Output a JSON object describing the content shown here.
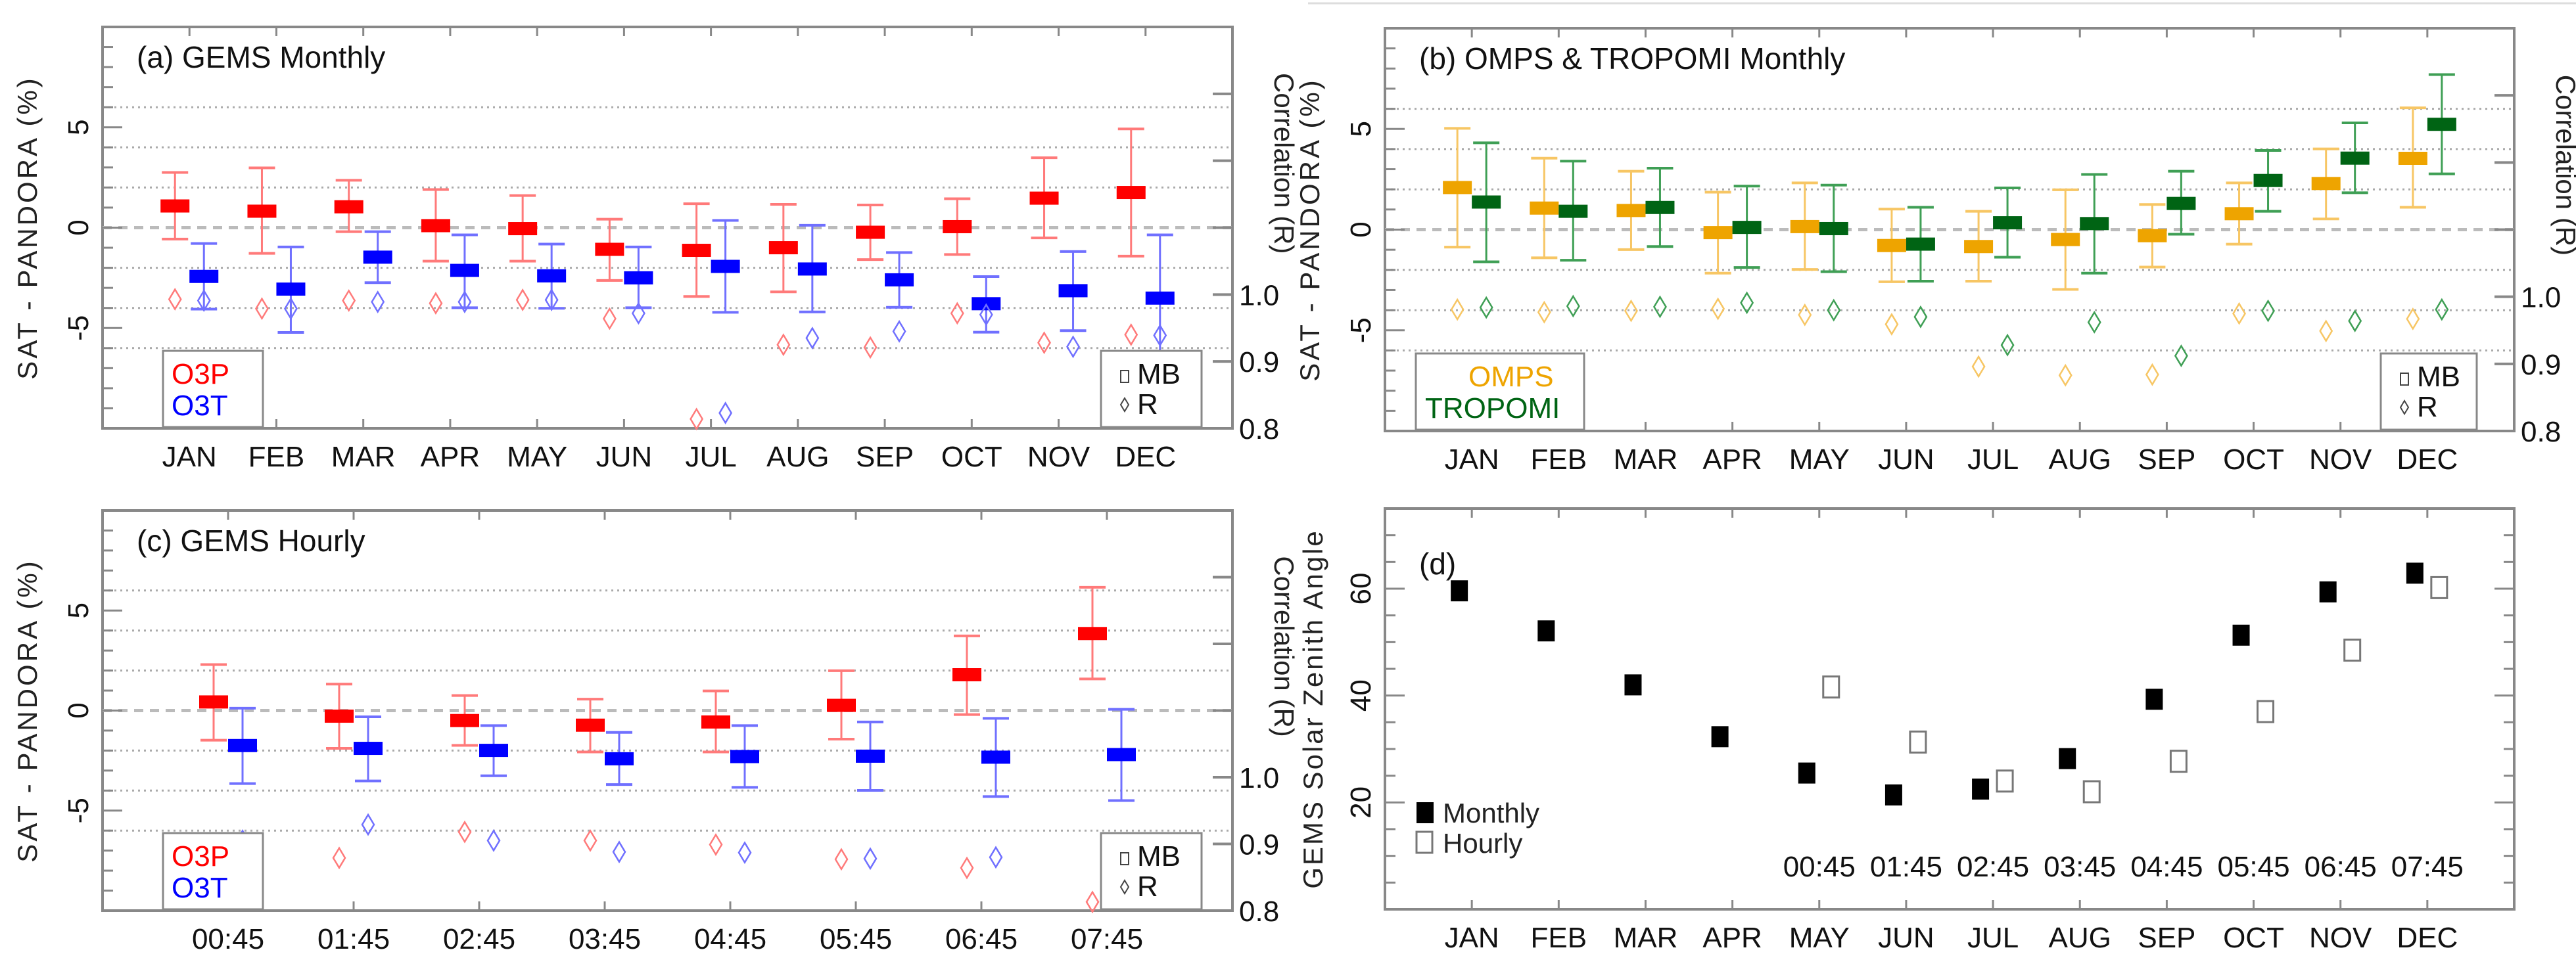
{
  "chart_data": [
    {
      "type": "scatter",
      "title": "(a) GEMS Monthly",
      "ylabel": "SAT - PANDORA (%)",
      "y2label": "Correlation (R)",
      "ylim": [
        -10,
        10
      ],
      "y2lim": [
        0.8,
        1.4
      ],
      "yticklabels": [
        "-5",
        "0",
        "5"
      ],
      "y2ticklabels": [
        "0.8",
        "0.9",
        "1.0"
      ],
      "categories": [
        "JAN",
        "FEB",
        "MAR",
        "APR",
        "MAY",
        "JUN",
        "JUL",
        "AUG",
        "SEP",
        "OCT",
        "NOV",
        "DEC"
      ],
      "legend_series": [
        "O3P",
        "O3T"
      ],
      "legend_markers": [
        "MB",
        "R"
      ],
      "series": [
        {
          "name": "O3P",
          "color": "#ff0000",
          "light": "#ff7a7a",
          "mb": [
            1.08,
            0.82,
            1.04,
            0.1,
            -0.05,
            -1.08,
            -1.13,
            -1.0,
            -0.23,
            0.05,
            1.47,
            1.75
          ],
          "err_hi": [
            2.75,
            2.98,
            2.36,
            1.9,
            1.6,
            0.42,
            1.19,
            1.16,
            1.13,
            1.44,
            3.48,
            4.92
          ],
          "err_lo": [
            -0.57,
            -1.28,
            -0.2,
            -1.67,
            -1.67,
            -2.63,
            -3.43,
            -3.2,
            -1.59,
            -1.34,
            -0.51,
            -1.42
          ],
          "r": [
            0.993,
            0.979,
            0.991,
            0.987,
            0.992,
            0.964,
            0.814,
            0.925,
            0.921,
            0.972,
            0.928,
            0.94
          ]
        },
        {
          "name": "O3T",
          "color": "#0000ff",
          "light": "#7070ff",
          "mb": [
            -2.43,
            -3.06,
            -1.47,
            -2.13,
            -2.4,
            -2.5,
            -1.93,
            -2.06,
            -2.6,
            -3.79,
            -3.14,
            -3.51
          ],
          "err_hi": [
            -0.79,
            -0.96,
            -0.2,
            -0.36,
            -0.82,
            -0.96,
            0.36,
            0.12,
            -1.24,
            -2.44,
            -1.19,
            -0.36
          ],
          "err_lo": [
            -4.06,
            -5.22,
            -2.74,
            -3.99,
            -4.02,
            -3.99,
            -4.22,
            -4.2,
            -3.97,
            -5.21,
            -5.13,
            -6.6
          ],
          "r": [
            0.991,
            0.979,
            0.989,
            0.989,
            0.992,
            0.972,
            0.823,
            0.935,
            0.945,
            0.97,
            0.922,
            0.939
          ]
        }
      ]
    },
    {
      "type": "scatter",
      "title": "(b) OMPS & TROPOMI Monthly",
      "ylabel": "SAT - PANDORA (%)",
      "y2label": "Correlation (R)",
      "ylim": [
        -10,
        10
      ],
      "y2lim": [
        0.8,
        1.4
      ],
      "yticklabels": [
        "-5",
        "0",
        "5"
      ],
      "y2ticklabels": [
        "0.8",
        "0.9",
        "1.0"
      ],
      "categories": [
        "JAN",
        "FEB",
        "MAR",
        "APR",
        "MAY",
        "JUN",
        "JUL",
        "AUG",
        "SEP",
        "OCT",
        "NOV",
        "DEC"
      ],
      "legend_series": [
        "OMPS",
        "TROPOMI"
      ],
      "legend_markers": [
        "MB",
        "R"
      ],
      "series": [
        {
          "name": "OMPS",
          "color": "#eea400",
          "light": "#f7c664",
          "mb": [
            2.09,
            1.07,
            0.95,
            -0.15,
            0.15,
            -0.79,
            -0.84,
            -0.49,
            -0.3,
            0.79,
            2.29,
            3.54
          ],
          "err_hi": [
            5.03,
            3.55,
            2.9,
            1.86,
            2.32,
            1.02,
            0.91,
            1.98,
            1.25,
            2.32,
            4.01,
            6.05
          ],
          "err_lo": [
            -0.87,
            -1.4,
            -0.99,
            -2.16,
            -1.98,
            -2.59,
            -2.56,
            -2.97,
            -1.86,
            -0.72,
            0.53,
            1.11
          ],
          "r": [
            0.981,
            0.977,
            0.979,
            0.982,
            0.973,
            0.959,
            0.896,
            0.883,
            0.884,
            0.975,
            0.949,
            0.967
          ]
        },
        {
          "name": "TROPOMI",
          "color": "#006414",
          "light": "#3f9f55",
          "mb": [
            1.37,
            0.91,
            1.1,
            0.11,
            0.05,
            -0.72,
            0.34,
            0.3,
            1.3,
            2.44,
            3.55,
            5.23
          ],
          "err_hi": [
            4.31,
            3.4,
            3.05,
            2.16,
            2.21,
            1.11,
            2.07,
            2.74,
            2.9,
            3.93,
            5.3,
            7.7
          ],
          "err_lo": [
            -1.6,
            -1.52,
            -0.84,
            -1.88,
            -2.09,
            -2.56,
            -1.37,
            -2.16,
            -0.23,
            0.91,
            1.83,
            2.77
          ],
          "r": [
            0.984,
            0.986,
            0.985,
            0.991,
            0.98,
            0.97,
            0.928,
            0.962,
            0.912,
            0.979,
            0.964,
            0.981
          ]
        }
      ]
    },
    {
      "type": "scatter",
      "title": "(c) GEMS Hourly",
      "ylabel": "SAT - PANDORA (%)",
      "y2label": "Correlation (R)",
      "ylim": [
        -10,
        10
      ],
      "y2lim": [
        0.8,
        1.4
      ],
      "yticklabels": [
        "-5",
        "0",
        "5"
      ],
      "y2ticklabels": [
        "0.8",
        "0.9",
        "1.0"
      ],
      "categories": [
        "00:45",
        "01:45",
        "02:45",
        "03:45",
        "04:45",
        "05:45",
        "06:45",
        "07:45"
      ],
      "legend_series": [
        "O3P",
        "O3T"
      ],
      "legend_markers": [
        "MB",
        "R"
      ],
      "series": [
        {
          "name": "O3P",
          "color": "#ff0000",
          "light": "#ff7a7a",
          "mb": [
            0.43,
            -0.28,
            -0.5,
            -0.73,
            -0.57,
            0.26,
            1.79,
            3.85
          ],
          "err_hi": [
            2.3,
            1.32,
            0.75,
            0.57,
            0.98,
            1.99,
            3.73,
            6.16
          ],
          "err_lo": [
            -1.48,
            -1.89,
            -1.74,
            -2.07,
            -2.07,
            -1.43,
            -0.2,
            1.58
          ],
          "r": [
            0.85,
            0.879,
            0.918,
            0.905,
            0.899,
            0.877,
            0.864,
            0.813
          ]
        },
        {
          "name": "O3T",
          "color": "#0000ff",
          "light": "#7070ff",
          "mb": [
            -1.75,
            -1.89,
            -1.99,
            -2.41,
            -2.3,
            -2.28,
            -2.33,
            -2.2
          ],
          "err_hi": [
            0.12,
            -0.31,
            -0.75,
            -1.09,
            -0.75,
            -0.57,
            -0.39,
            0.06
          ],
          "err_lo": [
            -3.65,
            -3.52,
            -3.26,
            -3.7,
            -3.84,
            -3.99,
            -4.3,
            -4.5
          ],
          "r": [
            0.905,
            0.929,
            0.905,
            0.888,
            0.887,
            0.878,
            0.88,
            0.86
          ]
        }
      ]
    },
    {
      "type": "scatter",
      "title": "(d)",
      "ylabel": "GEMS Solar Zenith Angle",
      "ylim": [
        0,
        75
      ],
      "yticklabels": [
        "20",
        "40",
        "60"
      ],
      "categories": [
        "JAN",
        "FEB",
        "MAR",
        "APR",
        "MAY",
        "JUN",
        "JUL",
        "AUG",
        "SEP",
        "OCT",
        "NOV",
        "DEC"
      ],
      "hourly_categories": [
        "00:45",
        "01:45",
        "02:45",
        "03:45",
        "04:45",
        "05:45",
        "06:45",
        "07:45"
      ],
      "series": [
        {
          "name": "Monthly",
          "values": [
            59.6,
            52.1,
            42.0,
            32.3,
            25.5,
            21.4,
            22.5,
            28.2,
            39.3,
            51.3,
            59.4,
            62.9
          ]
        },
        {
          "name": "Hourly",
          "values": [
            41.6,
            31.3,
            24.0,
            22.0,
            27.7,
            37.0,
            48.5,
            60.2
          ]
        }
      ]
    }
  ]
}
